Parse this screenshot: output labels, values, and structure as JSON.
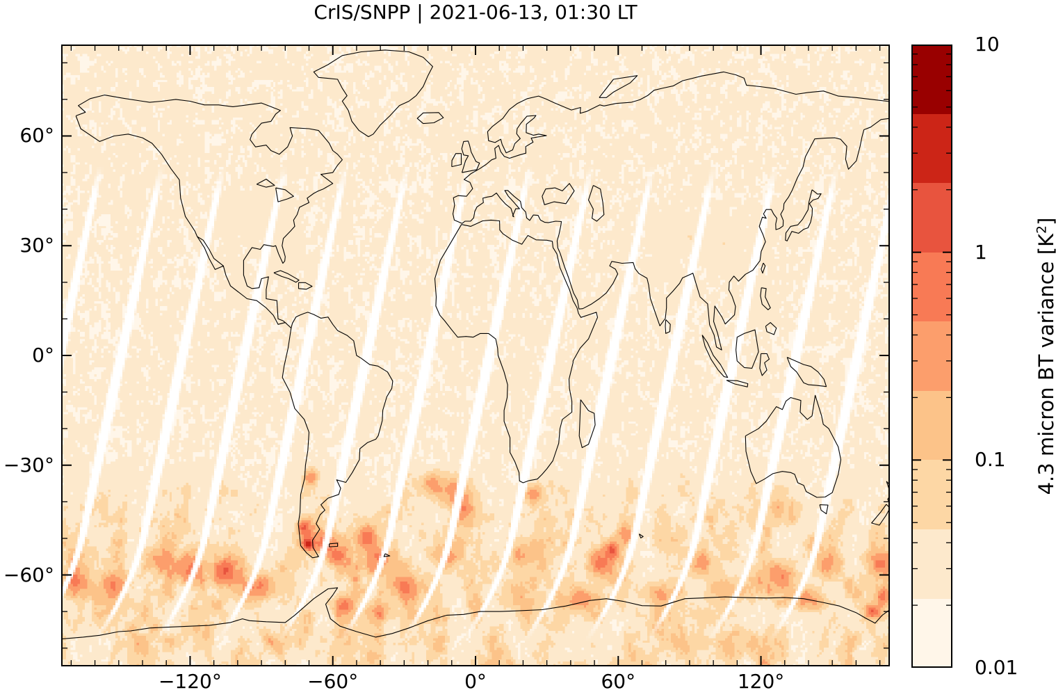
{
  "title": "CrIS/SNPP | 2021-06-13, 01:30 LT",
  "axes": {
    "x": {
      "tick_labels": [
        "−120°",
        "−60°",
        "0°",
        "60°",
        "120°"
      ],
      "tick_values": [
        -120,
        -60,
        0,
        60,
        120
      ],
      "minor_tick_step_deg": 10,
      "range_deg": [
        -174.2,
        174.2
      ]
    },
    "y": {
      "tick_labels": [
        "60°",
        "30°",
        "0°",
        "−30°",
        "−60°"
      ],
      "tick_values": [
        60,
        30,
        0,
        -30,
        -60
      ],
      "minor_tick_step_deg": 10,
      "range_deg": [
        -85,
        85
      ]
    }
  },
  "colorbar": {
    "label_pre": "4.3 micron BT variance [K",
    "label_sup": "2",
    "label_post": "]",
    "tick_labels": [
      "10",
      "1",
      "0.1",
      "0.01"
    ],
    "tick_values": [
      10,
      1,
      0.1,
      0.01
    ],
    "scale": "log",
    "range": [
      0.01,
      10
    ],
    "n_segments": 9,
    "colors_low_to_high": [
      "#fff6e9",
      "#fde9cc",
      "#fdd7a5",
      "#fcc389",
      "#fc9e6c",
      "#f87a55",
      "#e8543e",
      "#cc2517",
      "#990000"
    ]
  },
  "chart_data": {
    "type": "heatmap",
    "title": "CrIS/SNPP | 2021-06-13, 01:30 LT",
    "value_name": "4.3 micron BT variance",
    "units": "K^2",
    "projection": "equirectangular",
    "lon_range": [
      -174.2,
      174.2
    ],
    "lat_range": [
      -85,
      85
    ],
    "scale": "log10",
    "value_range": [
      0.01,
      10
    ],
    "background_value": 0.016,
    "southern_band": {
      "lat_onset": -28,
      "lat_full": -45,
      "typical_value": 0.08,
      "blob_peak_value": 0.3,
      "description": "broad mottled enhancement over the Southern Ocean and Antarctica"
    },
    "hotspots": [
      {
        "lon": -72,
        "lat": -47,
        "rlon": 3,
        "rlat": 2.5,
        "value": 2.5
      },
      {
        "lon": -70.5,
        "lat": -51.5,
        "rlon": 2.5,
        "rlat": 2,
        "value": 3
      },
      {
        "lon": -63,
        "lat": -52,
        "rlon": 4,
        "rlat": 3,
        "value": 0.9
      },
      {
        "lon": -58,
        "lat": -55,
        "rlon": 5,
        "rlat": 3,
        "value": 0.7
      },
      {
        "lon": -46,
        "lat": -50,
        "rlon": 5,
        "rlat": 3.5,
        "value": 0.8
      },
      {
        "lon": -40,
        "lat": -55,
        "rlon": 6,
        "rlat": 4,
        "value": 0.5
      },
      {
        "lon": -18,
        "lat": -35,
        "rlon": 5,
        "rlat": 3,
        "value": 0.55
      },
      {
        "lon": -10,
        "lat": -37,
        "rlon": 6,
        "rlat": 4,
        "value": 0.8
      },
      {
        "lon": -5,
        "lat": -42,
        "rlon": 5,
        "rlat": 4,
        "value": 0.6
      },
      {
        "lon": 24,
        "lat": -38,
        "rlon": 4,
        "rlat": 3,
        "value": 0.7
      },
      {
        "lon": 20,
        "lat": -55,
        "rlon": 7,
        "rlat": 5,
        "value": 0.45
      },
      {
        "lon": 57,
        "lat": -53,
        "rlon": 4,
        "rlat": 3,
        "value": 2.2
      },
      {
        "lon": 63,
        "lat": -49,
        "rlon": 4,
        "rlat": 3,
        "value": 0.8
      },
      {
        "lon": 52,
        "lat": -57,
        "rlon": 5,
        "rlat": 4,
        "value": 0.9
      },
      {
        "lon": 95,
        "lat": -57,
        "rlon": 6,
        "rlat": 4,
        "value": 0.6
      },
      {
        "lon": 128,
        "lat": -60,
        "rlon": 7,
        "rlat": 4,
        "value": 0.55
      },
      {
        "lon": 167,
        "lat": -70,
        "rlon": 4,
        "rlat": 2.5,
        "value": 2.8
      },
      {
        "lon": 172,
        "lat": -66,
        "rlon": 4,
        "rlat": 3,
        "value": 1
      },
      {
        "lon": -120,
        "lat": -59,
        "rlon": 6,
        "rlat": 4,
        "value": 0.8
      },
      {
        "lon": -134,
        "lat": -56,
        "rlon": 6,
        "rlat": 4,
        "value": 0.6
      },
      {
        "lon": -105,
        "lat": -59,
        "rlon": 5,
        "rlat": 3.5,
        "value": 1
      },
      {
        "lon": -92,
        "lat": -63,
        "rlon": 6,
        "rlat": 4,
        "value": 0.8
      },
      {
        "lon": -30,
        "lat": -63,
        "rlon": 7,
        "rlat": 4,
        "value": 0.6
      },
      {
        "lon": -55,
        "lat": -68,
        "rlon": 5,
        "rlat": 3,
        "value": 0.9
      },
      {
        "lon": 45,
        "lat": -67,
        "rlon": 7,
        "rlat": 3,
        "value": 0.6
      },
      {
        "lon": 140,
        "lat": -67,
        "rlon": 7,
        "rlat": 3,
        "value": 0.55
      },
      {
        "lon": 105,
        "lat": -64,
        "rlon": 7,
        "rlat": 3.5,
        "value": 0.5
      },
      {
        "lon": -69,
        "lat": -33,
        "rlon": 3,
        "rlat": 2.5,
        "value": 0.6
      },
      {
        "lon": 170,
        "lat": -57,
        "rlon": 5,
        "rlat": 4,
        "value": 0.7
      },
      {
        "lon": -168,
        "lat": -62,
        "rlon": 6,
        "rlat": 4,
        "value": 0.6
      },
      {
        "lon": -40,
        "lat": -70,
        "rlon": 6,
        "rlat": 3,
        "value": 0.65
      },
      {
        "lon": -12,
        "lat": -55,
        "rlon": 6,
        "rlat": 4,
        "value": 0.5
      },
      {
        "lon": 78,
        "lat": -65,
        "rlon": 6,
        "rlat": 3,
        "value": 0.6
      },
      {
        "lon": -152,
        "lat": -63,
        "rlon": 6,
        "rlat": 4,
        "value": 0.55
      },
      {
        "lon": 148,
        "lat": -57,
        "rlon": 6,
        "rlat": 4,
        "value": 0.6
      }
    ],
    "northern_patches": [
      {
        "lon": -100,
        "lat": 40,
        "rlon": 9,
        "rlat": 5,
        "value": 0.05
      },
      {
        "lon": -85,
        "lat": 36,
        "rlon": 7,
        "rlat": 5,
        "value": 0.045
      },
      {
        "lon": -80,
        "lat": 28,
        "rlon": 5,
        "rlat": 4,
        "value": 0.04
      },
      {
        "lon": -100,
        "lat": 20,
        "rlon": 4,
        "rlat": 4,
        "value": 0.04
      },
      {
        "lon": 88,
        "lat": 33,
        "rlon": 9,
        "rlat": 5,
        "value": 0.055
      },
      {
        "lon": 105,
        "lat": 30,
        "rlon": 8,
        "rlat": 6,
        "value": 0.05
      },
      {
        "lon": 78,
        "lat": 25,
        "rlon": 6,
        "rlat": 5,
        "value": 0.04
      },
      {
        "lon": 122,
        "lat": 14,
        "rlon": 5,
        "rlat": 5,
        "value": 0.045
      },
      {
        "lon": 128,
        "lat": 38,
        "rlon": 5,
        "rlat": 4,
        "value": 0.04
      }
    ],
    "orbit_gaps": {
      "count": 14,
      "lon_start": -174.8,
      "lon_spacing_deg": 25.8,
      "tilt_deg_lon_per_deg_lat": 0.33,
      "lat_extent": [
        -78,
        52
      ],
      "color": "#ffffff",
      "description": "white diagonal gaps between satellite swaths"
    }
  }
}
